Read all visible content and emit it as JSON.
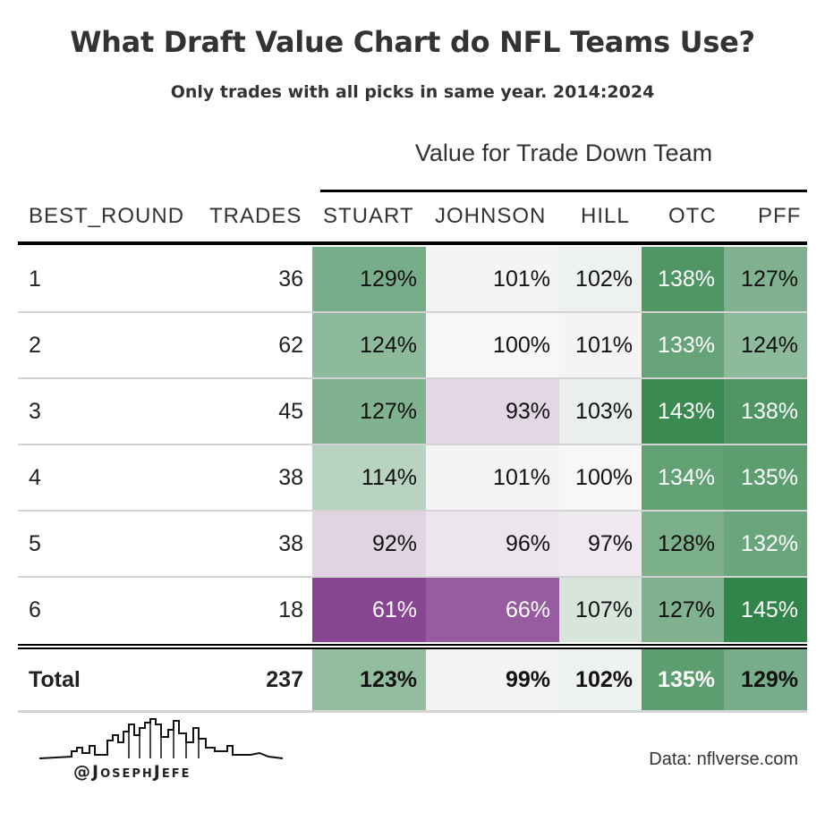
{
  "chart_data": {
    "type": "table",
    "title": "What Draft Value Chart do NFL Teams Use?",
    "subtitle": "Only trades with all picks in same year. 2014:2024",
    "spanner": "Value for Trade Down Team",
    "columns": [
      "BEST_ROUND",
      "TRADES",
      "STUART",
      "JOHNSON",
      "HILL",
      "OTC",
      "PFF"
    ],
    "rows": [
      {
        "label": "1",
        "trades": "36",
        "values": [
          "129%",
          "101%",
          "102%",
          "138%",
          "127%"
        ],
        "numbers": [
          129,
          101,
          102,
          138,
          127
        ]
      },
      {
        "label": "2",
        "trades": "62",
        "values": [
          "124%",
          "100%",
          "101%",
          "133%",
          "124%"
        ],
        "numbers": [
          124,
          100,
          101,
          133,
          124
        ]
      },
      {
        "label": "3",
        "trades": "45",
        "values": [
          "127%",
          "93%",
          "103%",
          "143%",
          "138%"
        ],
        "numbers": [
          127,
          93,
          103,
          143,
          138
        ]
      },
      {
        "label": "4",
        "trades": "38",
        "values": [
          "114%",
          "101%",
          "100%",
          "134%",
          "135%"
        ],
        "numbers": [
          114,
          101,
          100,
          134,
          135
        ]
      },
      {
        "label": "5",
        "trades": "38",
        "values": [
          "92%",
          "96%",
          "97%",
          "128%",
          "132%"
        ],
        "numbers": [
          92,
          96,
          97,
          128,
          132
        ]
      },
      {
        "label": "6",
        "trades": "18",
        "values": [
          "61%",
          "66%",
          "107%",
          "127%",
          "145%"
        ],
        "numbers": [
          61,
          66,
          107,
          127,
          145
        ]
      }
    ],
    "total": {
      "label": "Total",
      "trades": "237",
      "values": [
        "123%",
        "99%",
        "102%",
        "135%",
        "129%"
      ],
      "numbers": [
        123,
        99,
        102,
        135,
        129
      ]
    },
    "color_scale": {
      "type": "diverging",
      "low": "#762a83",
      "mid": "#f7f7f7",
      "high": "#1b7837",
      "domain": [
        55,
        100,
        150
      ]
    }
  },
  "footer": {
    "source": "Data: nflverse.com",
    "handle": "@JosephJefe"
  }
}
